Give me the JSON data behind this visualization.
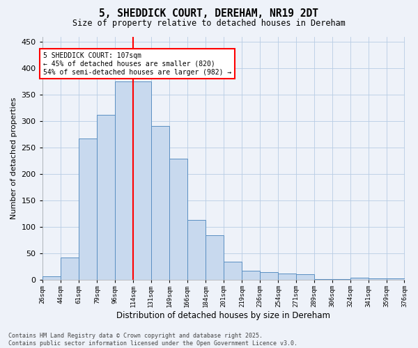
{
  "title": "5, SHEDDICK COURT, DEREHAM, NR19 2DT",
  "subtitle": "Size of property relative to detached houses in Dereham",
  "xlabel": "Distribution of detached houses by size in Dereham",
  "ylabel": "Number of detached properties",
  "bar_color": "#c8d9ee",
  "bar_edge_color": "#5a8fc2",
  "vline_x": 114,
  "vline_color": "red",
  "bins": [
    26,
    44,
    61,
    79,
    96,
    114,
    131,
    149,
    166,
    184,
    201,
    219,
    236,
    254,
    271,
    289,
    306,
    324,
    341,
    359,
    376
  ],
  "bin_labels": [
    "26sqm",
    "44sqm",
    "61sqm",
    "79sqm",
    "96sqm",
    "114sqm",
    "131sqm",
    "149sqm",
    "166sqm",
    "184sqm",
    "201sqm",
    "219sqm",
    "236sqm",
    "254sqm",
    "271sqm",
    "289sqm",
    "306sqm",
    "324sqm",
    "341sqm",
    "359sqm",
    "376sqm"
  ],
  "bar_heights": [
    7,
    43,
    267,
    312,
    375,
    375,
    291,
    229,
    114,
    85,
    34,
    17,
    15,
    12,
    11,
    1,
    1,
    4,
    3,
    3
  ],
  "ylim": [
    0,
    460
  ],
  "yticks": [
    0,
    50,
    100,
    150,
    200,
    250,
    300,
    350,
    400,
    450
  ],
  "annotation_text": "5 SHEDDICK COURT: 107sqm\n← 45% of detached houses are smaller (820)\n54% of semi-detached houses are larger (982) →",
  "annotation_box_color": "white",
  "annotation_box_edge": "red",
  "footer_text": "Contains HM Land Registry data © Crown copyright and database right 2025.\nContains public sector information licensed under the Open Government Licence v3.0.",
  "background_color": "#eef2f9",
  "grid_color": "#b8cce4"
}
